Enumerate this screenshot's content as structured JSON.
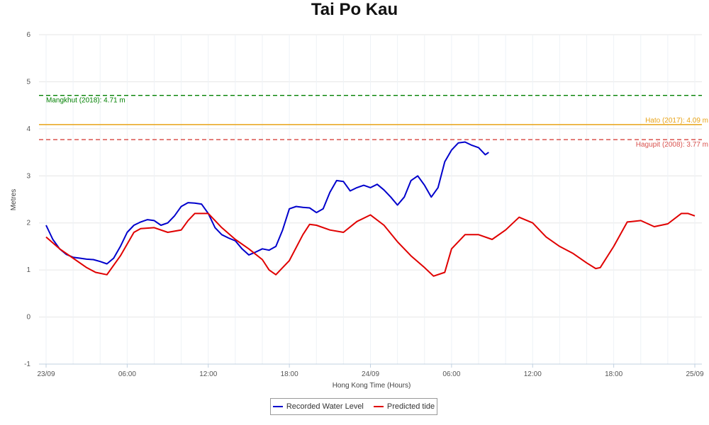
{
  "chart_data": {
    "type": "line",
    "title": "Tai Po Kau",
    "xlabel": "Hong Kong Time (Hours)",
    "ylabel": "Metres",
    "ylim": [
      -1,
      6
    ],
    "yticks": [
      "-1",
      "0",
      "1",
      "2",
      "3",
      "4",
      "5",
      "6"
    ],
    "xlim": [
      "2018-09-23T00:00",
      "2018-09-25T00:00"
    ],
    "xticks": [
      "23/09",
      "06:00",
      "12:00",
      "18:00",
      "24/09",
      "06:00",
      "12:00",
      "18:00",
      "25/09"
    ],
    "grid": true,
    "legend_position": "bottom-center",
    "reference_lines": [
      {
        "label": "Mangkhut (2018): 4.71 m",
        "value": 4.71,
        "color": "#008000",
        "style": "dashed"
      },
      {
        "label": "Hato (2017): 4.09 m",
        "value": 4.09,
        "color": "#e8a317",
        "style": "solid"
      },
      {
        "label": "Hagupit (2008): 3.77 m",
        "value": 3.77,
        "color": "#d9534f",
        "style": "dashed"
      }
    ],
    "series": [
      {
        "name": "Recorded Water Level",
        "color": "#0000cc",
        "x": [
          "2018-09-23T00:00",
          "2018-09-23T00:30",
          "2018-09-23T01:00",
          "2018-09-23T01:30",
          "2018-09-23T02:00",
          "2018-09-23T02:30",
          "2018-09-23T03:00",
          "2018-09-23T03:30",
          "2018-09-23T04:00",
          "2018-09-23T04:30",
          "2018-09-23T05:00",
          "2018-09-23T05:30",
          "2018-09-23T06:00",
          "2018-09-23T06:30",
          "2018-09-23T07:00",
          "2018-09-23T07:30",
          "2018-09-23T08:00",
          "2018-09-23T08:30",
          "2018-09-23T09:00",
          "2018-09-23T09:30",
          "2018-09-23T10:00",
          "2018-09-23T10:30",
          "2018-09-23T11:00",
          "2018-09-23T11:30",
          "2018-09-23T12:00",
          "2018-09-23T12:30",
          "2018-09-23T13:00",
          "2018-09-23T13:30",
          "2018-09-23T14:00",
          "2018-09-23T14:30",
          "2018-09-23T15:00",
          "2018-09-23T15:30",
          "2018-09-23T16:00",
          "2018-09-23T16:30",
          "2018-09-23T17:00",
          "2018-09-23T17:30",
          "2018-09-23T18:00",
          "2018-09-23T18:30",
          "2018-09-23T19:00",
          "2018-09-23T19:30",
          "2018-09-23T20:00",
          "2018-09-23T20:30",
          "2018-09-23T21:00",
          "2018-09-23T21:30",
          "2018-09-23T22:00",
          "2018-09-23T22:30",
          "2018-09-23T23:00",
          "2018-09-23T23:30",
          "2018-09-24T00:00",
          "2018-09-24T00:30",
          "2018-09-24T01:00",
          "2018-09-24T01:30",
          "2018-09-24T02:00",
          "2018-09-24T02:30",
          "2018-09-24T03:00",
          "2018-09-24T03:30",
          "2018-09-24T04:00",
          "2018-09-24T04:30",
          "2018-09-24T05:00",
          "2018-09-24T05:30",
          "2018-09-24T06:00",
          "2018-09-24T06:30",
          "2018-09-24T07:00",
          "2018-09-24T07:30",
          "2018-09-24T08:00",
          "2018-09-24T08:30",
          "2018-09-24T08:45"
        ],
        "values": [
          1.95,
          1.65,
          1.45,
          1.33,
          1.27,
          1.25,
          1.23,
          1.22,
          1.18,
          1.13,
          1.25,
          1.5,
          1.8,
          1.95,
          2.02,
          2.07,
          2.05,
          1.95,
          2.0,
          2.15,
          2.35,
          2.43,
          2.42,
          2.4,
          2.2,
          1.9,
          1.75,
          1.68,
          1.62,
          1.45,
          1.32,
          1.38,
          1.45,
          1.42,
          1.5,
          1.85,
          2.3,
          2.35,
          2.33,
          2.32,
          2.22,
          2.3,
          2.65,
          2.9,
          2.88,
          2.68,
          2.75,
          2.8,
          2.75,
          2.82,
          2.7,
          2.55,
          2.38,
          2.55,
          2.9,
          3.0,
          2.8,
          2.55,
          2.75,
          3.3,
          3.55,
          3.7,
          3.72,
          3.65,
          3.6,
          3.45,
          3.5
        ]
      },
      {
        "name": "Predicted tide",
        "color": "#e00000",
        "x": [
          "2018-09-23T00:00",
          "2018-09-23T01:00",
          "2018-09-23T02:00",
          "2018-09-23T03:00",
          "2018-09-23T03:40",
          "2018-09-23T04:30",
          "2018-09-23T05:30",
          "2018-09-23T06:30",
          "2018-09-23T07:00",
          "2018-09-23T08:00",
          "2018-09-23T09:00",
          "2018-09-23T10:00",
          "2018-09-23T10:30",
          "2018-09-23T11:00",
          "2018-09-23T12:00",
          "2018-09-23T13:00",
          "2018-09-23T14:00",
          "2018-09-23T15:00",
          "2018-09-23T16:00",
          "2018-09-23T16:30",
          "2018-09-23T17:00",
          "2018-09-23T18:00",
          "2018-09-23T19:00",
          "2018-09-23T19:30",
          "2018-09-23T20:00",
          "2018-09-23T21:00",
          "2018-09-23T22:00",
          "2018-09-23T23:00",
          "2018-09-24T00:00",
          "2018-09-24T01:00",
          "2018-09-24T02:00",
          "2018-09-24T03:00",
          "2018-09-24T04:00",
          "2018-09-24T04:40",
          "2018-09-24T05:30",
          "2018-09-24T06:00",
          "2018-09-24T07:00",
          "2018-09-24T08:00",
          "2018-09-24T09:00",
          "2018-09-24T10:00",
          "2018-09-24T11:00",
          "2018-09-24T12:00",
          "2018-09-24T13:00",
          "2018-09-24T14:00",
          "2018-09-24T15:00",
          "2018-09-24T16:00",
          "2018-09-24T16:40",
          "2018-09-24T17:00",
          "2018-09-24T18:00",
          "2018-09-24T19:00",
          "2018-09-24T20:00",
          "2018-09-24T21:00",
          "2018-09-24T22:00",
          "2018-09-24T23:00",
          "2018-09-24T23:30",
          "2018-09-25T00:00"
        ],
        "values": [
          1.7,
          1.45,
          1.25,
          1.05,
          0.95,
          0.9,
          1.3,
          1.8,
          1.88,
          1.9,
          1.8,
          1.85,
          2.05,
          2.2,
          2.2,
          1.9,
          1.65,
          1.45,
          1.22,
          1.0,
          0.9,
          1.2,
          1.75,
          1.97,
          1.95,
          1.85,
          1.8,
          2.03,
          2.17,
          1.95,
          1.6,
          1.3,
          1.05,
          0.87,
          0.95,
          1.45,
          1.75,
          1.75,
          1.65,
          1.85,
          2.12,
          2.0,
          1.7,
          1.5,
          1.35,
          1.15,
          1.03,
          1.05,
          1.5,
          2.02,
          2.05,
          1.92,
          1.98,
          2.2,
          2.2,
          2.15
        ]
      }
    ]
  }
}
